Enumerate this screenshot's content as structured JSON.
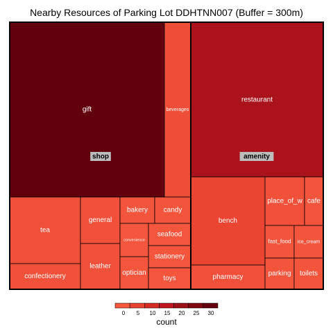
{
  "chart_data": {
    "type": "treemap",
    "title": "Nearby Resources of Parking Lot DDHTNN007 (Buffer = 300m)",
    "groups": [
      {
        "name": "shop",
        "items": [
          {
            "label": "gift",
            "value": 33
          },
          {
            "label": "beverages",
            "value": 5
          },
          {
            "label": "tea",
            "value": 4
          },
          {
            "label": "confectionery",
            "value": 3
          },
          {
            "label": "general",
            "value": 3
          },
          {
            "label": "leather",
            "value": 3
          },
          {
            "label": "bakery",
            "value": 2
          },
          {
            "label": "candy",
            "value": 2
          },
          {
            "label": "convenience",
            "value": 1
          },
          {
            "label": "seafood",
            "value": 1
          },
          {
            "label": "stationery",
            "value": 1
          },
          {
            "label": "optician",
            "value": 1
          },
          {
            "label": "toys",
            "value": 1
          }
        ]
      },
      {
        "name": "amenity",
        "items": [
          {
            "label": "restaurant",
            "value": 22
          },
          {
            "label": "bench",
            "value": 9
          },
          {
            "label": "pharmacy",
            "value": 4
          },
          {
            "label": "place_of_w",
            "value": 3
          },
          {
            "label": "cafe",
            "value": 2
          },
          {
            "label": "fast_food",
            "value": 2
          },
          {
            "label": "ice_cream",
            "value": 2
          },
          {
            "label": "parking",
            "value": 2
          },
          {
            "label": "toilets",
            "value": 2
          }
        ]
      }
    ],
    "legend": {
      "title": "count",
      "ticks": [
        "0",
        "5",
        "10",
        "15",
        "20",
        "25",
        "30"
      ],
      "colors": [
        "#f4583e",
        "#e94232",
        "#d32c24",
        "#c0151e",
        "#9b1118",
        "#7d0810",
        "#63000d"
      ],
      "placement": "bottom"
    }
  }
}
